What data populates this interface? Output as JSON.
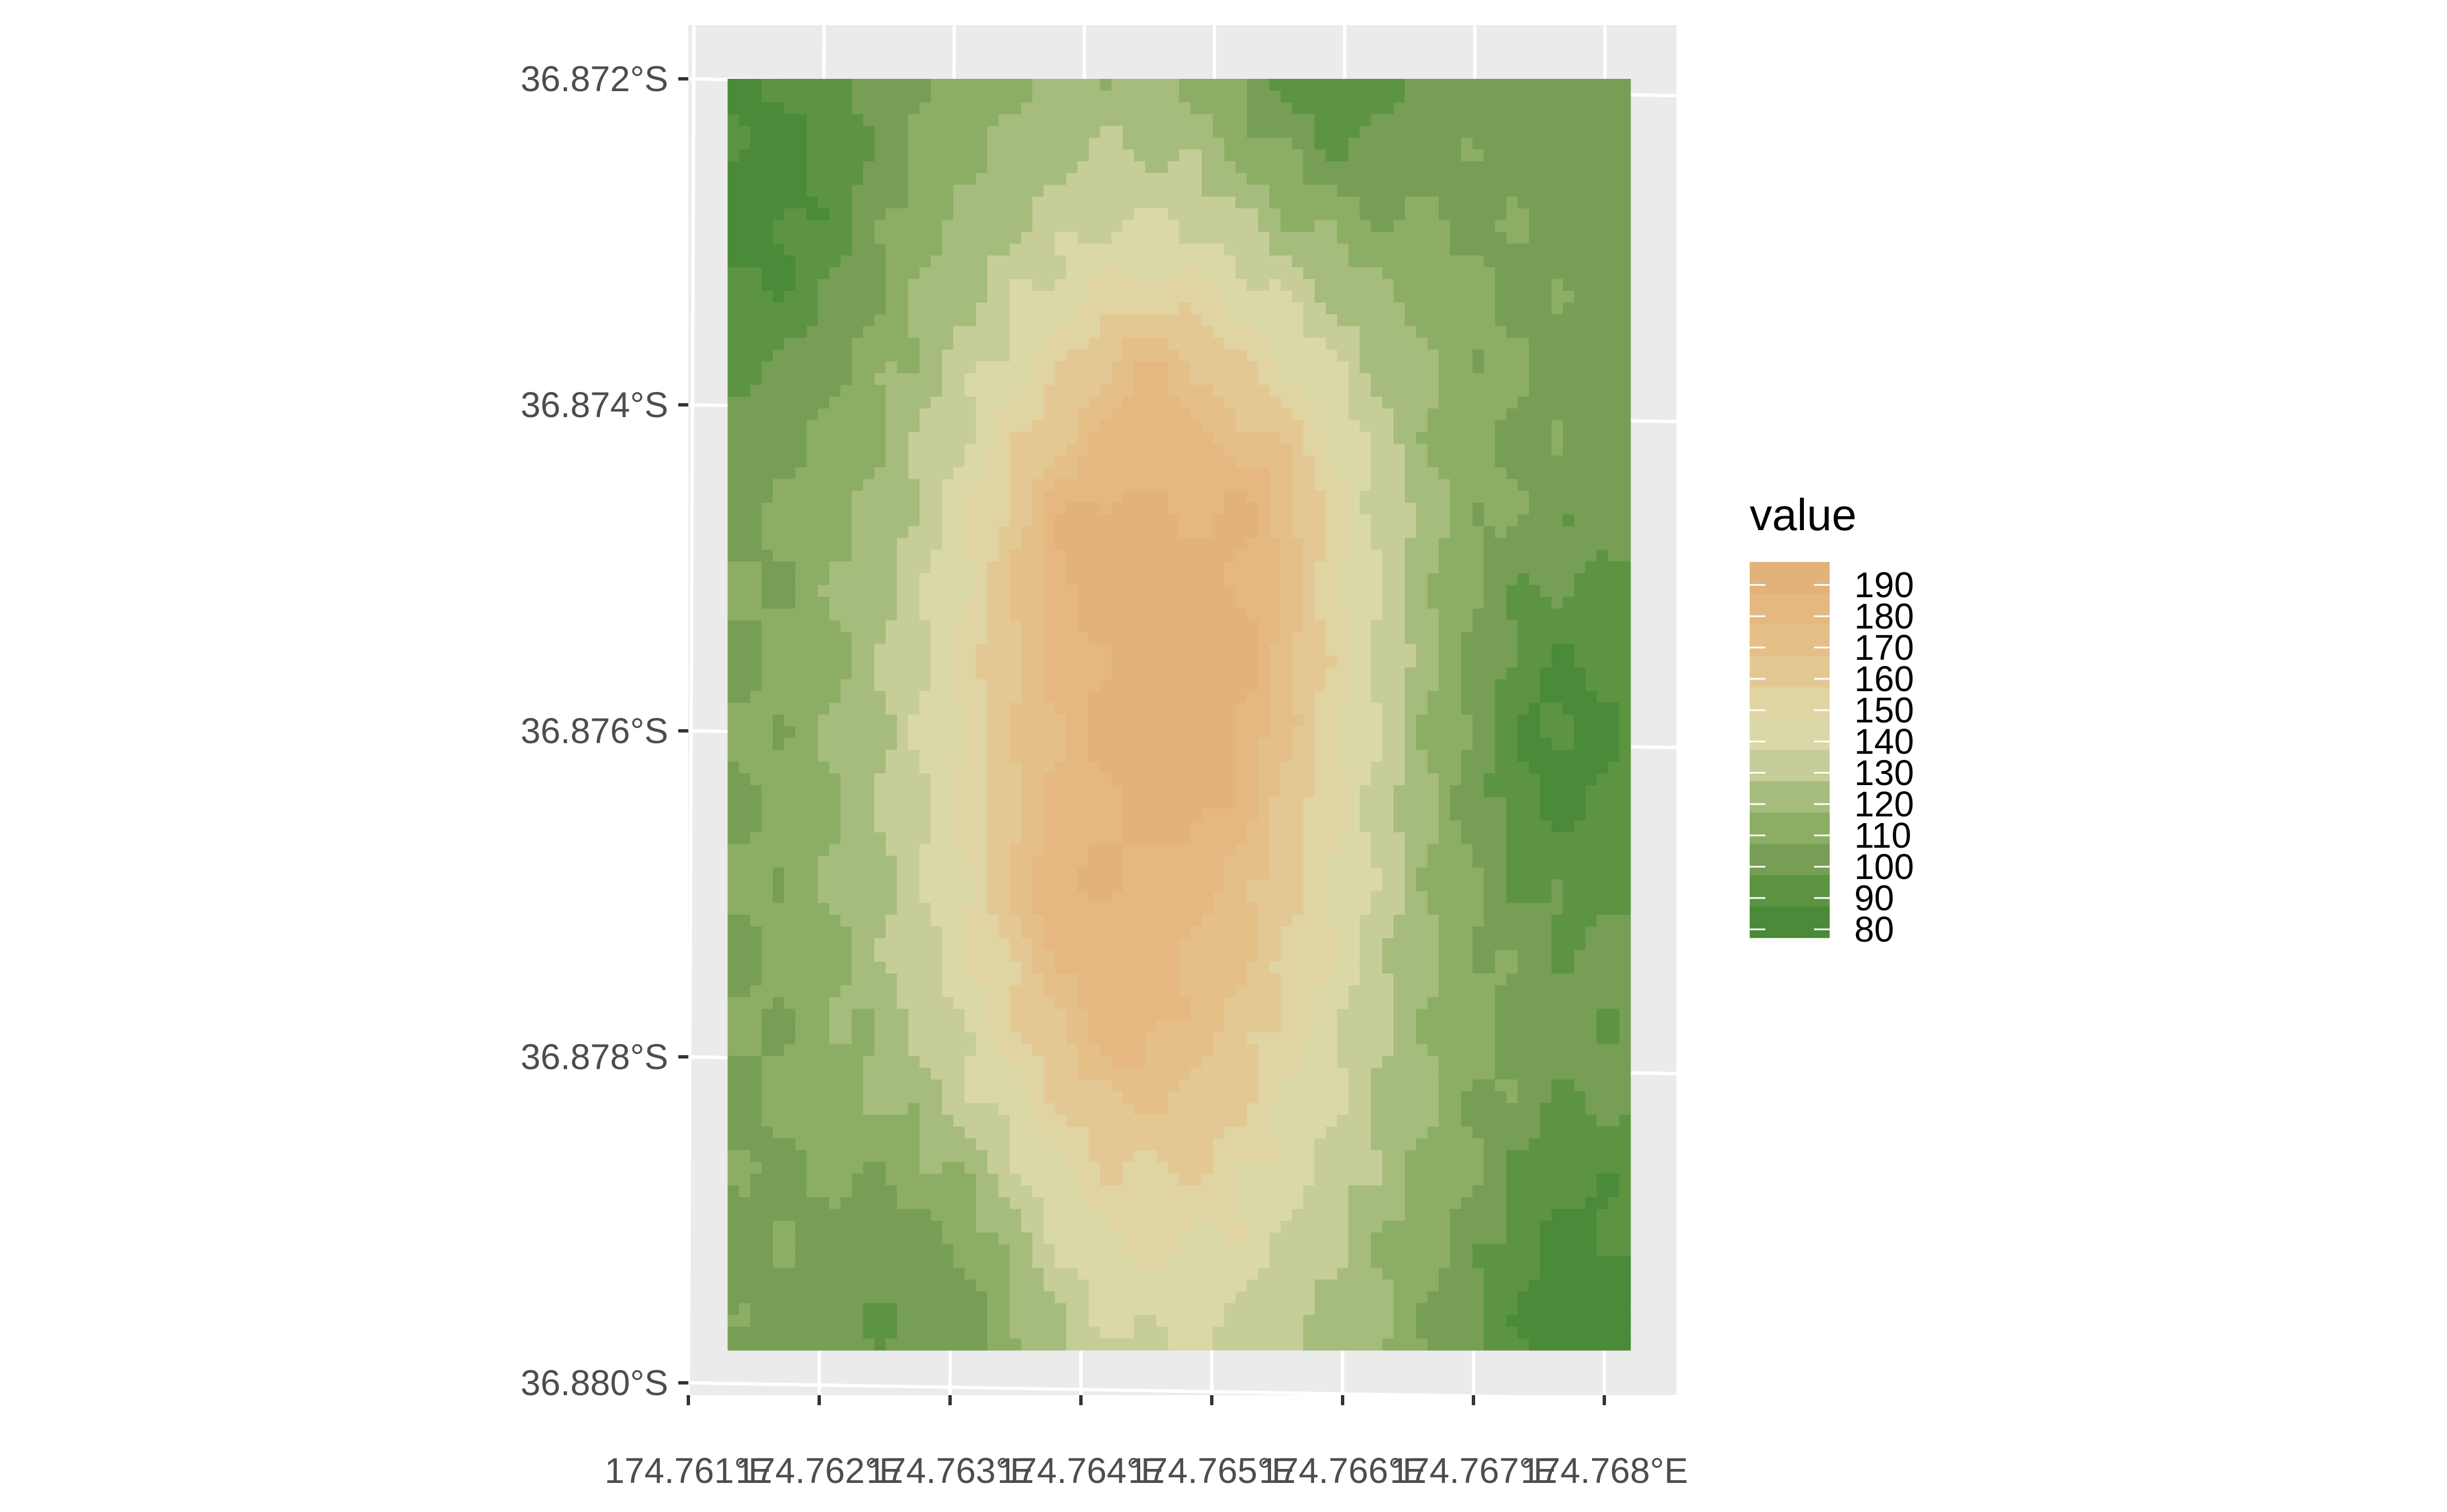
{
  "chart_data": {
    "type": "heatmap",
    "title": "",
    "xlabel": "",
    "ylabel": "",
    "x_ticks": [
      "174.761°E",
      "174.762°E",
      "174.763°E",
      "174.764°E",
      "174.765°E",
      "174.766°E",
      "174.767°E",
      "174.768°E"
    ],
    "y_ticks": [
      "36.872°S",
      "36.874°S",
      "36.876°S",
      "36.878°S",
      "36.880°S"
    ],
    "xlim": [
      174.761,
      174.7682
    ],
    "ylim": [
      -36.88,
      -36.8717
    ],
    "raster_extent": {
      "lon": [
        174.7613,
        174.7682
      ],
      "lat": [
        -36.8798,
        -36.872
      ]
    },
    "grid": true,
    "legend": {
      "title": "value",
      "position": "right",
      "labels": [
        "190",
        "180",
        "170",
        "160",
        "150",
        "140",
        "130",
        "120",
        "110",
        "100",
        "90",
        "80"
      ]
    },
    "value_range": [
      75,
      195
    ],
    "colors": [
      "#4a8a38",
      "#5c9442",
      "#769e55",
      "#8cae64",
      "#a6bc7c",
      "#c6cd98",
      "#dbd8a8",
      "#e0d4a2",
      "#e3c894",
      "#e4bf88",
      "#e4b880",
      "#e2b27a"
    ],
    "peaks": [
      {
        "lon": 174.7643,
        "lat": -36.8778,
        "value": 193
      },
      {
        "lon": 174.7638,
        "lat": -36.877,
        "value": 175
      },
      {
        "lon": 174.7649,
        "lat": -36.8762,
        "value": 178
      },
      {
        "lon": 174.7652,
        "lat": -36.8755,
        "value": 168
      },
      {
        "lon": 174.7654,
        "lat": -36.8746,
        "value": 150
      },
      {
        "lon": 174.764,
        "lat": -36.8748,
        "value": 145
      },
      {
        "lon": 174.7645,
        "lat": -36.8738,
        "value": 132
      }
    ],
    "lows": [
      {
        "lon": 174.7616,
        "lat": -36.8727,
        "value": 85
      },
      {
        "lon": 174.7658,
        "lat": -36.872,
        "value": 82
      },
      {
        "lon": 174.7676,
        "lat": -36.8761,
        "value": 100
      },
      {
        "lon": 174.7678,
        "lat": -36.8795,
        "value": 100
      },
      {
        "lon": 174.763,
        "lat": -36.8795,
        "value": 110
      }
    ]
  }
}
